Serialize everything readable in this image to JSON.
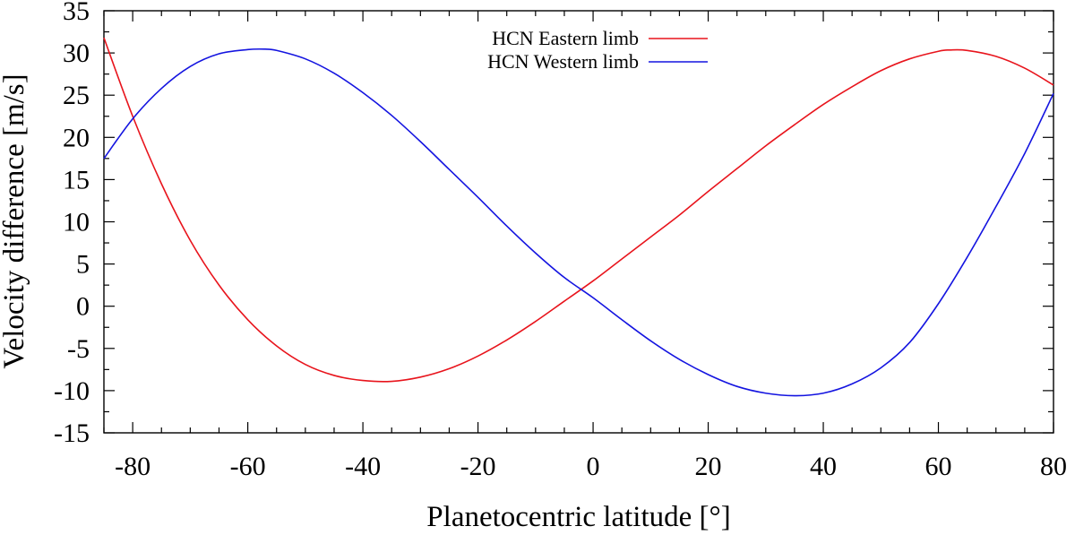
{
  "chart_data": {
    "type": "line",
    "title": "",
    "xlabel": "Planetocentric latitude [°]",
    "ylabel": "Velocity difference [m/s]",
    "xlim": [
      -85,
      80
    ],
    "ylim": [
      -15,
      35
    ],
    "xticks": [
      -80,
      -60,
      -40,
      -20,
      0,
      20,
      40,
      60,
      80
    ],
    "yticks": [
      -15,
      -10,
      -5,
      0,
      5,
      10,
      15,
      20,
      25,
      30,
      35
    ],
    "x_minor_step": 5,
    "y_minor_step": 2.5,
    "grid": false,
    "legend_position": "top-center",
    "series": [
      {
        "name": "HCN Eastern limb",
        "color": "#e8141c",
        "x": [
          -85,
          -80,
          -75,
          -70,
          -65,
          -60,
          -55,
          -50,
          -45,
          -40,
          -35,
          -30,
          -25,
          -20,
          -15,
          -10,
          -5,
          0,
          5,
          10,
          15,
          20,
          25,
          30,
          35,
          40,
          45,
          50,
          55,
          60,
          62,
          65,
          70,
          75,
          80
        ],
        "y": [
          31.8,
          22.5,
          14.5,
          7.8,
          2.5,
          -1.6,
          -4.7,
          -6.9,
          -8.2,
          -8.8,
          -8.9,
          -8.4,
          -7.4,
          -5.9,
          -4.0,
          -1.8,
          0.6,
          3.0,
          5.6,
          8.2,
          10.8,
          13.6,
          16.3,
          19.0,
          21.5,
          23.9,
          26.0,
          27.9,
          29.3,
          30.2,
          30.35,
          30.3,
          29.6,
          28.2,
          26.2
        ]
      },
      {
        "name": "HCN Western limb",
        "color": "#1414e0",
        "x": [
          -85,
          -80,
          -75,
          -70,
          -65,
          -60,
          -57,
          -55,
          -50,
          -45,
          -40,
          -35,
          -30,
          -25,
          -20,
          -15,
          -10,
          -5,
          0,
          5,
          10,
          15,
          20,
          25,
          30,
          35,
          40,
          45,
          50,
          55,
          60,
          65,
          70,
          75,
          80
        ],
        "y": [
          17.5,
          22.2,
          25.8,
          28.4,
          29.9,
          30.4,
          30.45,
          30.3,
          29.3,
          27.6,
          25.3,
          22.6,
          19.5,
          16.2,
          12.9,
          9.5,
          6.3,
          3.4,
          1.0,
          -1.6,
          -4.1,
          -6.3,
          -8.1,
          -9.5,
          -10.3,
          -10.6,
          -10.3,
          -9.2,
          -7.3,
          -4.3,
          0.3,
          5.8,
          11.8,
          18.1,
          25.2
        ]
      }
    ]
  }
}
